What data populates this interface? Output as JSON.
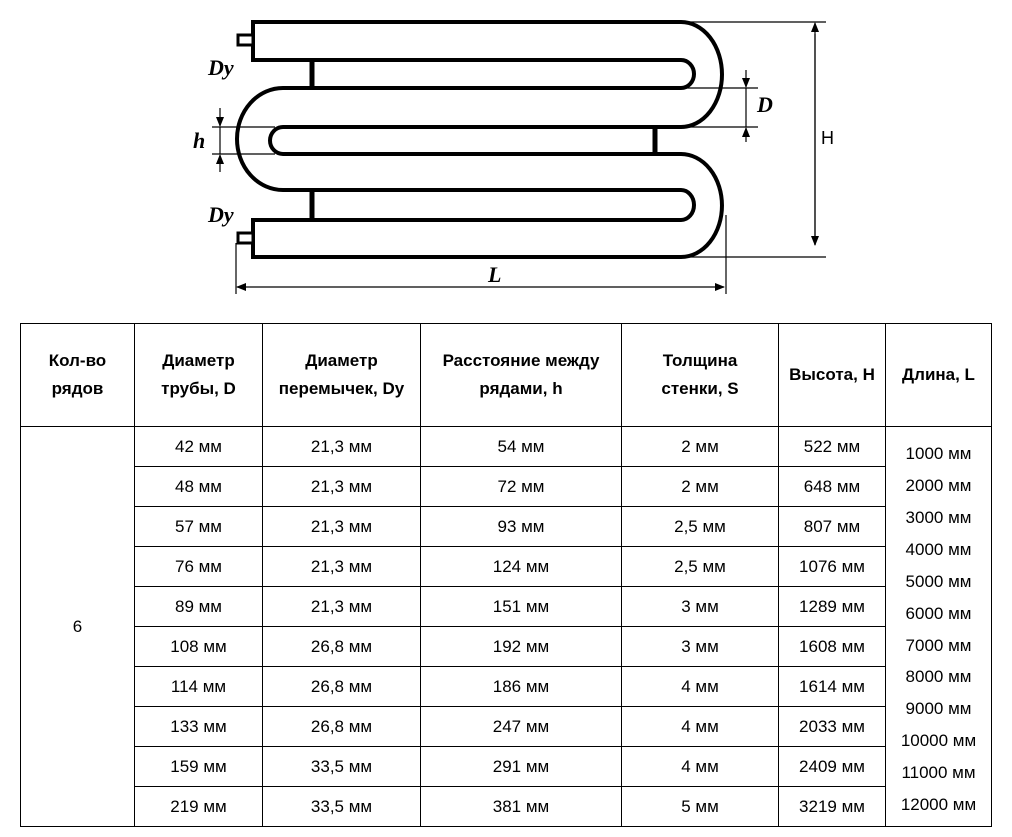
{
  "diagram": {
    "labels": {
      "dy_top": "Dy",
      "dy_bottom": "Dy",
      "h": "h",
      "d": "D",
      "height": "H",
      "length": "L"
    }
  },
  "table": {
    "headers": [
      [
        "Кол-во",
        "рядов"
      ],
      [
        "Диаметр",
        "трубы, D"
      ],
      [
        "Диаметр",
        "перемычек, Dy"
      ],
      [
        "Расстояние между",
        "рядами, h"
      ],
      [
        "Толщина",
        "стенки, S"
      ],
      [
        "Высота, H"
      ],
      [
        "Длина, L"
      ]
    ],
    "rows_count": "6",
    "rows": [
      [
        "42 мм",
        "21,3 мм",
        "54 мм",
        "2 мм",
        "522 мм"
      ],
      [
        "48 мм",
        "21,3 мм",
        "72 мм",
        "2 мм",
        "648 мм"
      ],
      [
        "57 мм",
        "21,3 мм",
        "93 мм",
        "2,5 мм",
        "807 мм"
      ],
      [
        "76 мм",
        "21,3 мм",
        "124 мм",
        "2,5 мм",
        "1076 мм"
      ],
      [
        "89 мм",
        "21,3 мм",
        "151 мм",
        "3 мм",
        "1289 мм"
      ],
      [
        "108 мм",
        "26,8 мм",
        "192 мм",
        "3 мм",
        "1608 мм"
      ],
      [
        "114 мм",
        "26,8 мм",
        "186 мм",
        "4 мм",
        "1614 мм"
      ],
      [
        "133 мм",
        "26,8 мм",
        "247 мм",
        "4 мм",
        "2033 мм"
      ],
      [
        "159 мм",
        "33,5 мм",
        "291 мм",
        "4 мм",
        "2409 мм"
      ],
      [
        "219 мм",
        "33,5 мм",
        "381 мм",
        "5 мм",
        "3219 мм"
      ]
    ],
    "lengths": [
      "1000 мм",
      "2000 мм",
      "3000 мм",
      "4000 мм",
      "5000 мм",
      "6000 мм",
      "7000 мм",
      "8000 мм",
      "9000 мм",
      "10000 мм",
      "11000 мм",
      "12000 мм"
    ]
  }
}
